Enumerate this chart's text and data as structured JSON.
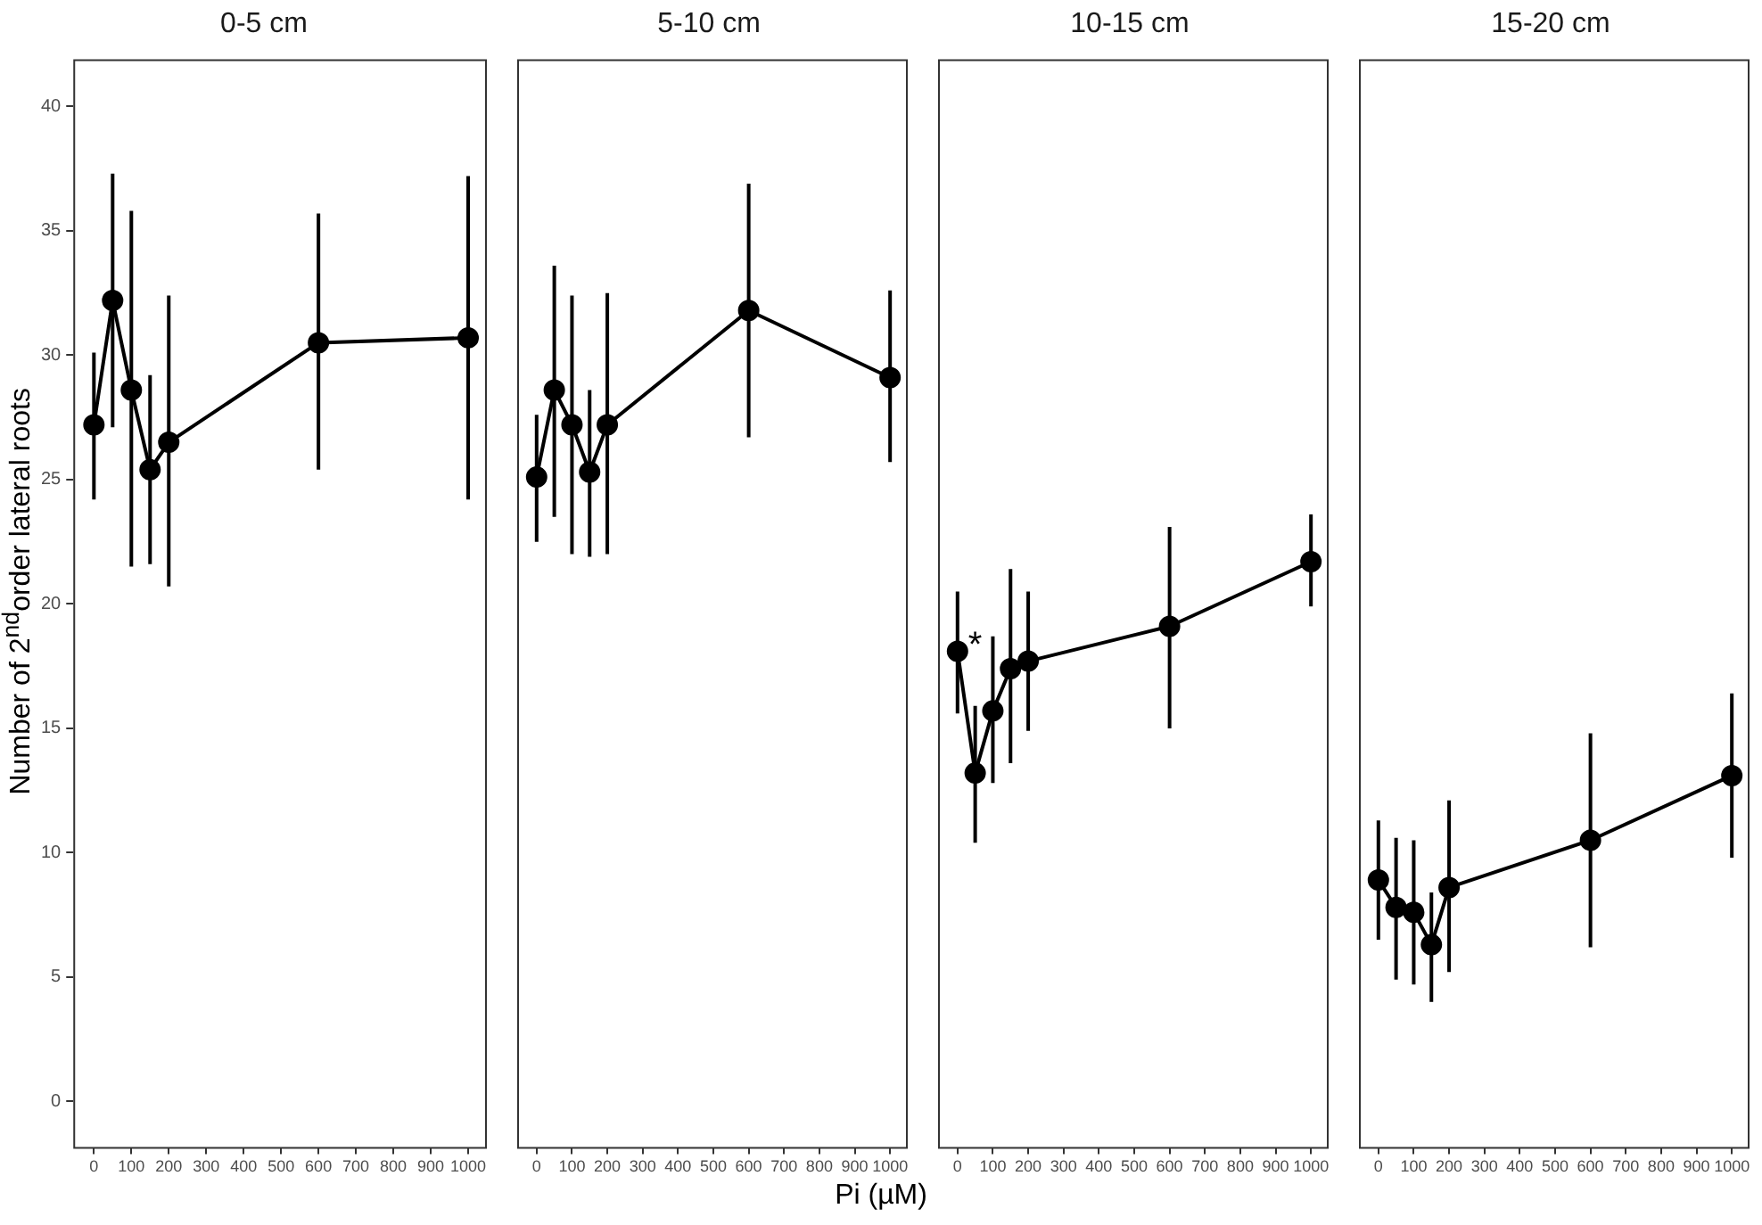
{
  "chart_data": [
    {
      "type": "line",
      "title": "0-5 cm",
      "ylabel": "Number of 2$^{nd}$order lateral roots",
      "x": [
        0,
        50,
        100,
        150,
        200,
        600,
        1000
      ],
      "series": [
        {
          "color": "#000000",
          "values": [
            27.2,
            32.2,
            28.6,
            25.4,
            26.5,
            30.5,
            30.7
          ],
          "errors": [
            [
              24.2,
              30.1
            ],
            [
              27.1,
              37.3
            ],
            [
              21.5,
              35.8
            ],
            [
              21.6,
              29.2
            ],
            [
              20.7,
              32.4
            ],
            [
              25.4,
              35.7
            ],
            [
              24.2,
              37.2
            ]
          ]
        }
      ],
      "xlim": [
        -55,
        1050
      ],
      "ylim": [
        -1.9,
        41.9
      ],
      "xticks": [
        0,
        100,
        200,
        300,
        400,
        500,
        600,
        700,
        800,
        900,
        1000
      ],
      "yticks": [
        0,
        5,
        10,
        15,
        20,
        25,
        30,
        35,
        40
      ],
      "grid": false,
      "marker": "circle",
      "line_style": "solid"
    },
    {
      "type": "line",
      "title": "5-10 cm",
      "xlabel": "Pi (µM)",
      "x": [
        0,
        50,
        100,
        150,
        200,
        600,
        1000
      ],
      "series": [
        {
          "color": "#000000",
          "values": [
            25.1,
            28.6,
            27.2,
            25.3,
            27.2,
            31.8,
            29.1
          ],
          "errors": [
            [
              22.5,
              27.6
            ],
            [
              23.5,
              33.6
            ],
            [
              22,
              32.4
            ],
            [
              21.9,
              28.6
            ],
            [
              22,
              32.5
            ],
            [
              26.7,
              36.9
            ],
            [
              25.7,
              32.6
            ]
          ]
        }
      ],
      "xlim": [
        -55,
        1050
      ],
      "ylim": [
        -1.9,
        41.9
      ],
      "xticks": [
        0,
        100,
        200,
        300,
        400,
        500,
        600,
        700,
        800,
        900,
        1000
      ],
      "tick_labels": "x",
      "grid": false,
      "marker": "circle",
      "line_style": "solid"
    },
    {
      "type": "line",
      "title": "10-15 cm",
      "x": [
        0,
        50,
        100,
        150,
        200,
        600,
        1000
      ],
      "series": [
        {
          "color": "#000000",
          "values": [
            18.1,
            13.2,
            15.7,
            17.4,
            17.7,
            19.1,
            21.7
          ],
          "errors": [
            [
              15.6,
              20.5
            ],
            [
              10.4,
              15.9
            ],
            [
              12.8,
              18.7
            ],
            [
              13.6,
              21.4
            ],
            [
              14.9,
              20.5
            ],
            [
              15,
              23.1
            ],
            [
              19.9,
              23.6
            ]
          ]
        }
      ],
      "annotations": [
        {
          "text": "*",
          "x": 50,
          "y": 18.3
        }
      ],
      "xlim": [
        -55,
        1050
      ],
      "ylim": [
        -1.9,
        41.9
      ],
      "xticks": [
        0,
        100,
        200,
        300,
        400,
        500,
        600,
        700,
        800,
        900,
        1000
      ],
      "tick_labels": "x",
      "grid": false,
      "marker": "circle",
      "line_style": "solid"
    },
    {
      "type": "line",
      "title": "15-20 cm",
      "x": [
        0,
        50,
        100,
        150,
        200,
        600,
        1000
      ],
      "series": [
        {
          "color": "#000000",
          "values": [
            8.9,
            7.8,
            7.6,
            6.3,
            8.6,
            10.5,
            13.1
          ],
          "errors": [
            [
              6.5,
              11.3
            ],
            [
              4.9,
              10.6
            ],
            [
              4.7,
              10.5
            ],
            [
              4,
              8.4
            ],
            [
              5.2,
              12.1
            ],
            [
              6.2,
              14.8
            ],
            [
              9.8,
              16.4
            ]
          ]
        }
      ],
      "xlim": [
        -55,
        1050
      ],
      "ylim": [
        -1.9,
        41.9
      ],
      "xticks": [
        0,
        100,
        200,
        300,
        400,
        500,
        600,
        700,
        800,
        900,
        1000
      ],
      "tick_labels": "x",
      "grid": false,
      "marker": "circle",
      "line_style": "solid"
    }
  ]
}
